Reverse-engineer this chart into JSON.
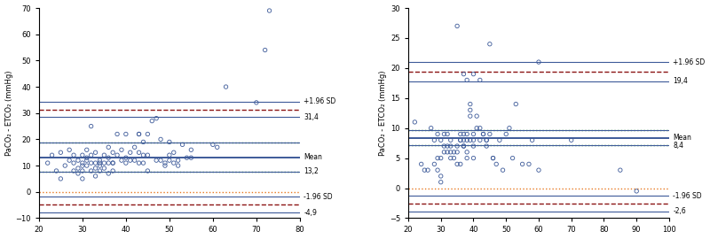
{
  "plot1": {
    "xlim": [
      20,
      80
    ],
    "ylim": [
      -10,
      70
    ],
    "xticks": [
      20,
      30,
      40,
      50,
      60,
      70,
      80
    ],
    "yticks": [
      -10,
      0,
      10,
      20,
      30,
      40,
      50,
      60,
      70
    ],
    "ylabel": "PaCO₂ - ETCO₂ (mmHg)",
    "mean": 13.2,
    "upper_sd": 31.4,
    "lower_sd": -4.9,
    "mean_ci": 5.5,
    "upper_ci": 3.0,
    "lower_ci": 3.0,
    "scatter_x": [
      22,
      23,
      24,
      25,
      25,
      26,
      27,
      27,
      28,
      28,
      28,
      29,
      29,
      29,
      30,
      30,
      30,
      30,
      30,
      31,
      31,
      31,
      31,
      32,
      32,
      32,
      32,
      33,
      33,
      33,
      33,
      34,
      34,
      34,
      34,
      35,
      35,
      35,
      36,
      36,
      36,
      36,
      37,
      37,
      37,
      37,
      38,
      38,
      39,
      39,
      40,
      40,
      40,
      41,
      41,
      42,
      42,
      43,
      43,
      43,
      43,
      44,
      44,
      44,
      45,
      45,
      45,
      46,
      47,
      47,
      48,
      48,
      49,
      49,
      50,
      50,
      50,
      51,
      51,
      52,
      52,
      53,
      54,
      55,
      55,
      60,
      61,
      63,
      70,
      72,
      73
    ],
    "scatter_y": [
      11,
      14,
      8,
      5,
      15,
      10,
      12,
      16,
      8,
      14,
      11,
      7,
      9,
      12,
      11,
      10,
      8,
      5,
      14,
      10,
      12,
      16,
      13,
      8,
      25,
      14,
      11,
      6,
      9,
      11,
      15,
      12,
      8,
      11,
      10,
      9,
      11,
      14,
      7,
      13,
      17,
      11,
      11,
      15,
      11,
      8,
      14,
      22,
      12,
      16,
      13,
      22,
      11,
      15,
      12,
      17,
      12,
      15,
      22,
      22,
      11,
      19,
      11,
      14,
      22,
      8,
      14,
      27,
      12,
      28,
      12,
      20,
      11,
      10,
      14,
      19,
      12,
      15,
      11,
      12,
      10,
      18,
      13,
      16,
      13,
      18,
      17,
      40,
      34,
      54,
      69
    ]
  },
  "plot2": {
    "xlim": [
      20,
      100
    ],
    "ylim": [
      -5,
      30
    ],
    "xticks": [
      20,
      30,
      40,
      50,
      60,
      70,
      80,
      90,
      100
    ],
    "yticks": [
      -5,
      0,
      5,
      10,
      15,
      20,
      25,
      30
    ],
    "ylabel": "PaCO₂ - ETCO₂ (mmHg)",
    "mean": 8.4,
    "upper_sd": 19.4,
    "lower_sd": -2.6,
    "mean_ci": 1.3,
    "upper_ci": 1.6,
    "lower_ci": 1.3,
    "scatter_x": [
      22,
      24,
      25,
      26,
      27,
      28,
      28,
      29,
      29,
      29,
      30,
      30,
      30,
      30,
      31,
      31,
      31,
      32,
      32,
      32,
      33,
      33,
      33,
      33,
      34,
      34,
      35,
      35,
      35,
      36,
      36,
      36,
      36,
      37,
      37,
      37,
      37,
      38,
      38,
      38,
      38,
      39,
      39,
      39,
      39,
      40,
      40,
      40,
      40,
      41,
      41,
      42,
      42,
      43,
      43,
      44,
      44,
      44,
      45,
      46,
      46,
      47,
      48,
      49,
      50,
      51,
      52,
      53,
      55,
      57,
      58,
      60,
      70,
      85,
      90,
      35,
      37,
      38,
      40,
      42,
      45,
      60
    ],
    "scatter_y": [
      11,
      4,
      3,
      3,
      10,
      8,
      4,
      9,
      5,
      3,
      8,
      2,
      5,
      1,
      9,
      6,
      7,
      9,
      6,
      7,
      8,
      5,
      7,
      6,
      6,
      5,
      7,
      4,
      6,
      8,
      8,
      9,
      4,
      8,
      7,
      9,
      7,
      9,
      8,
      6,
      5,
      14,
      13,
      12,
      8,
      7,
      8,
      9,
      5,
      12,
      10,
      10,
      8,
      9,
      9,
      8,
      8,
      7,
      9,
      5,
      5,
      4,
      8,
      3,
      9,
      10,
      5,
      14,
      4,
      4,
      8,
      3,
      8,
      3,
      -0.5,
      27,
      19,
      18,
      19,
      18,
      24,
      21
    ]
  },
  "line_color_solid": "#3d5a99",
  "line_color_dashed": "#8b1414",
  "line_color_dotted_orange": "#e87820",
  "line_color_dotted_green": "#228b22",
  "scatter_color": "#3d5a99",
  "bg_color": "#ffffff"
}
